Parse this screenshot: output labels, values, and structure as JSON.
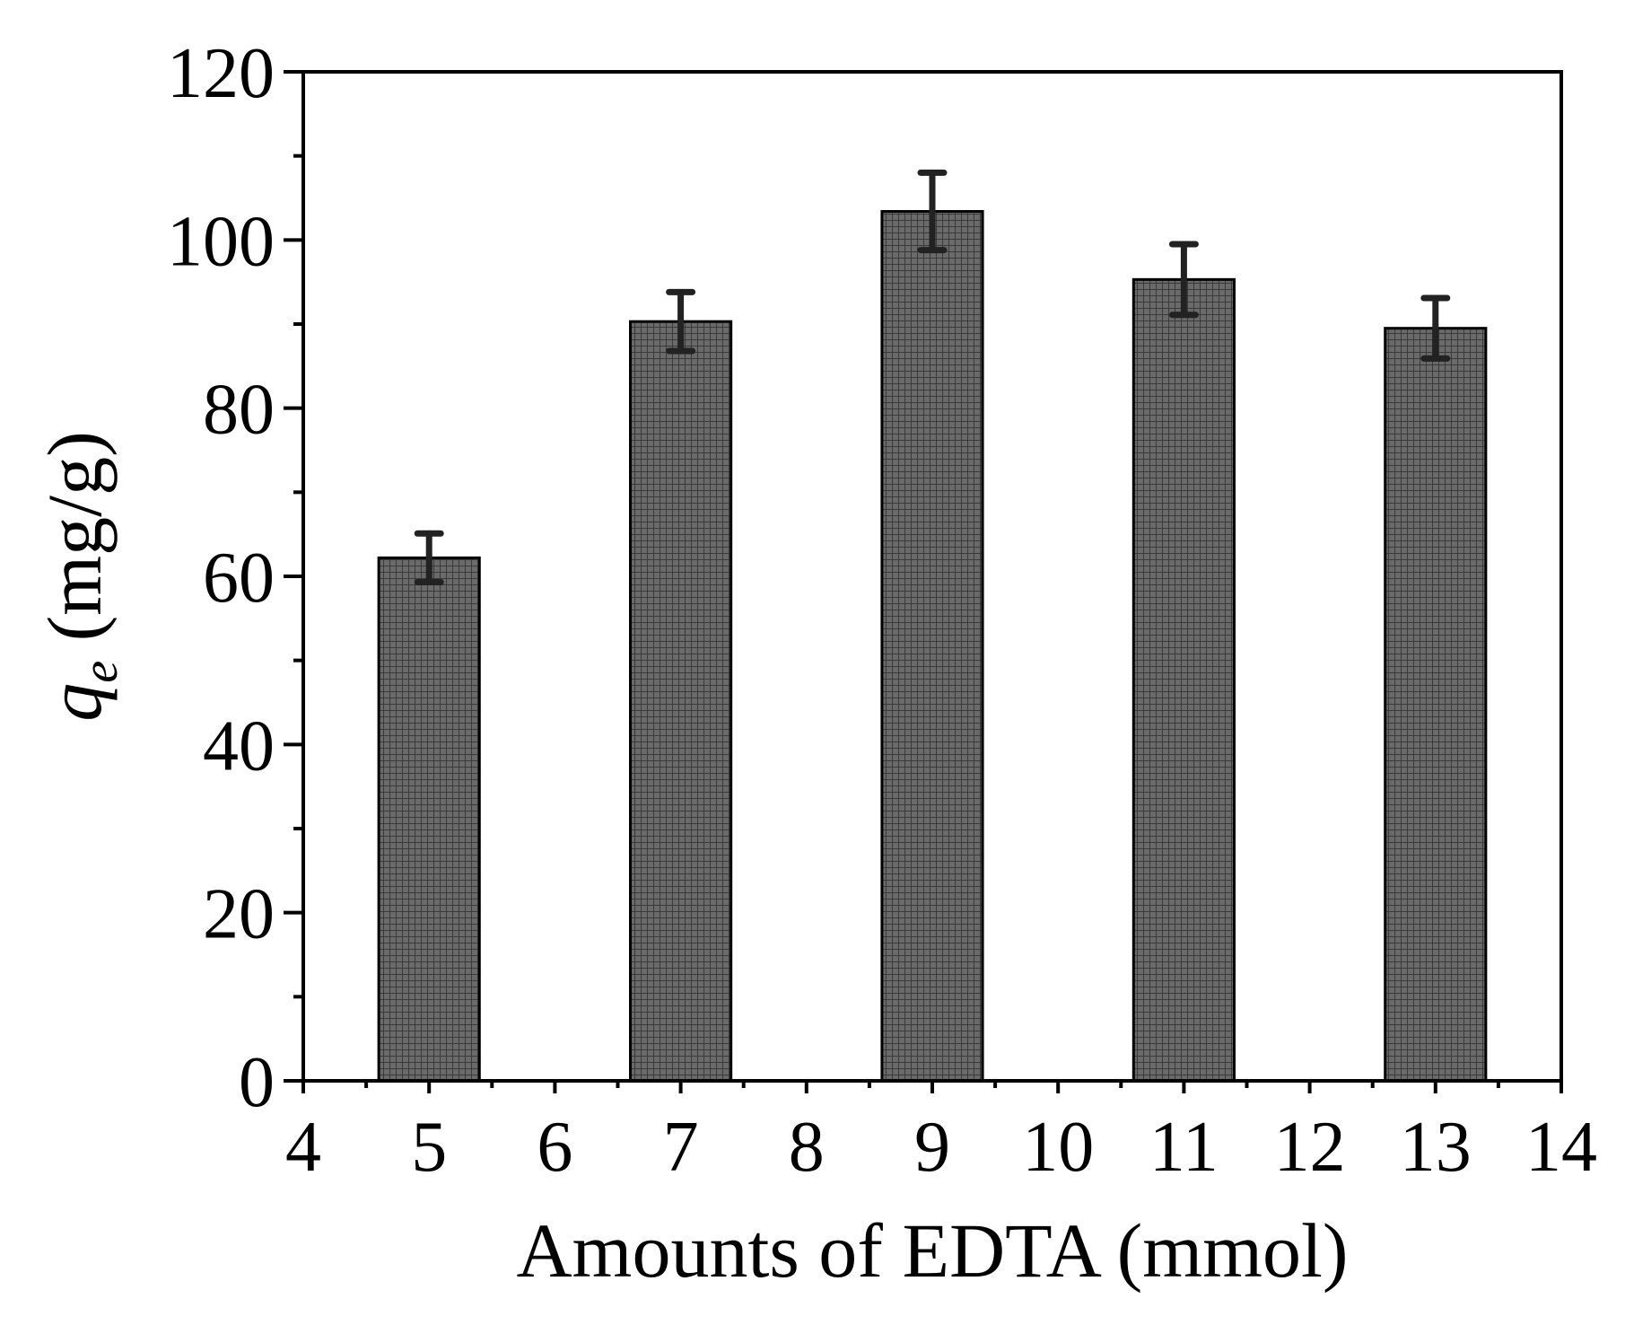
{
  "chart_data": {
    "type": "bar",
    "title": "",
    "x": [
      5,
      7,
      9,
      11,
      13
    ],
    "values": [
      62.2,
      90.3,
      103.4,
      95.3,
      89.5
    ],
    "errors": [
      2.9,
      3.5,
      4.6,
      4.2,
      3.6
    ],
    "xlim": [
      4,
      14
    ],
    "ylim": [
      0,
      120
    ],
    "xticks": [
      "4",
      "5",
      "6",
      "7",
      "8",
      "9",
      "10",
      "11",
      "12",
      "13",
      "14"
    ],
    "yticks": [
      "0",
      "20",
      "40",
      "60",
      "80",
      "100",
      "120"
    ],
    "xlabel": "Amounts of EDTA (mmol)",
    "ylabel_symbol": "q",
    "ylabel_subscript": "e",
    "ylabel_unit": " (mg/g)",
    "bar_color": "#5f5f5f",
    "grid": false
  }
}
